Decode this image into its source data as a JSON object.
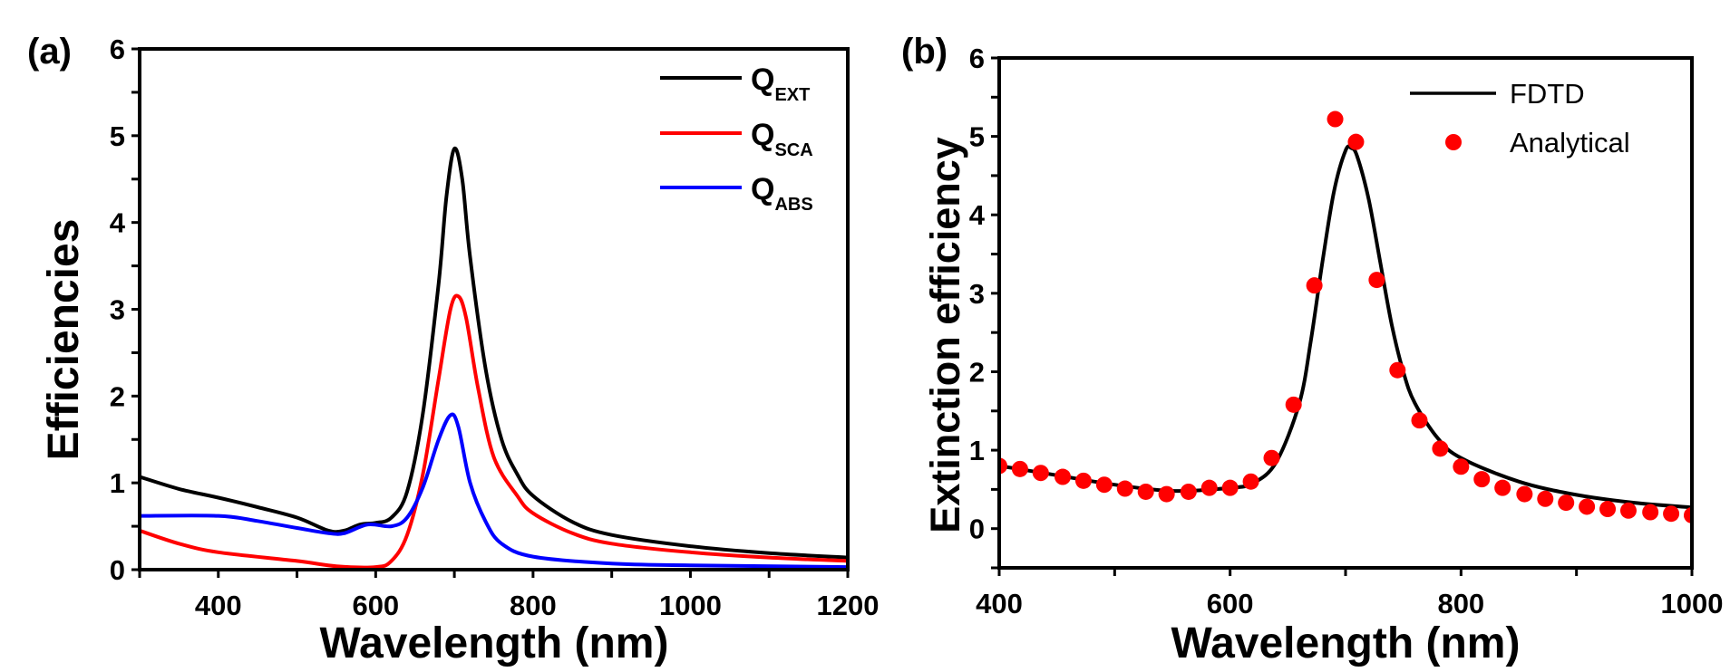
{
  "chart_data": [
    {
      "panel_label": "(a)",
      "type": "line",
      "xlabel": "Wavelength (nm)",
      "ylabel": "Efficiencies",
      "xlim": [
        300,
        1200
      ],
      "ylim": [
        0,
        6
      ],
      "xticks": [
        400,
        600,
        800,
        1000,
        1200
      ],
      "yticks": [
        0,
        1,
        2,
        3,
        4,
        5,
        6
      ],
      "grid": false,
      "legend_position": "top-right",
      "series": [
        {
          "name": "Q",
          "subscript": "EXT",
          "color": "#000000",
          "x": [
            300,
            350,
            400,
            450,
            500,
            540,
            560,
            580,
            600,
            620,
            640,
            660,
            680,
            690,
            700,
            710,
            720,
            740,
            760,
            780,
            800,
            850,
            900,
            1000,
            1100,
            1200
          ],
          "y": [
            1.07,
            0.93,
            0.83,
            0.72,
            0.6,
            0.45,
            0.45,
            0.52,
            0.54,
            0.6,
            0.9,
            1.8,
            3.3,
            4.3,
            4.85,
            4.5,
            3.6,
            2.3,
            1.5,
            1.1,
            0.85,
            0.55,
            0.4,
            0.27,
            0.19,
            0.14
          ]
        },
        {
          "name": "Q",
          "subscript": "SCA",
          "color": "#ff0000",
          "x": [
            300,
            350,
            400,
            500,
            550,
            600,
            620,
            640,
            660,
            680,
            695,
            705,
            715,
            730,
            750,
            780,
            800,
            850,
            900,
            1000,
            1100,
            1200
          ],
          "y": [
            0.45,
            0.3,
            0.2,
            0.1,
            0.04,
            0.03,
            0.1,
            0.4,
            1.1,
            2.2,
            3.0,
            3.15,
            2.9,
            2.1,
            1.3,
            0.85,
            0.65,
            0.42,
            0.3,
            0.2,
            0.14,
            0.1
          ]
        },
        {
          "name": "Q",
          "subscript": "ABS",
          "color": "#0000ff",
          "x": [
            300,
            400,
            450,
            500,
            540,
            560,
            590,
            620,
            640,
            660,
            680,
            695,
            705,
            720,
            740,
            760,
            800,
            900,
            1000,
            1200
          ],
          "y": [
            0.62,
            0.62,
            0.56,
            0.48,
            0.42,
            0.42,
            0.52,
            0.5,
            0.6,
            0.95,
            1.5,
            1.78,
            1.65,
            1.0,
            0.55,
            0.3,
            0.15,
            0.07,
            0.05,
            0.03
          ]
        }
      ]
    },
    {
      "panel_label": "(b)",
      "type": "line+scatter",
      "xlabel": "Wavelength (nm)",
      "ylabel": "Extinction efficiency",
      "xlim": [
        400,
        1000
      ],
      "ylim": [
        -0.5,
        6
      ],
      "xticks": [
        400,
        600,
        800,
        1000
      ],
      "yticks": [
        0,
        1,
        2,
        3,
        4,
        5,
        6
      ],
      "grid": false,
      "legend_position": "top-right",
      "series": [
        {
          "name": "FDTD",
          "kind": "line",
          "color": "#000000",
          "x": [
            400,
            450,
            500,
            550,
            600,
            620,
            640,
            660,
            670,
            680,
            690,
            700,
            705,
            710,
            720,
            730,
            740,
            750,
            760,
            780,
            800,
            850,
            900,
            950,
            1000
          ],
          "y": [
            0.8,
            0.68,
            0.56,
            0.48,
            0.52,
            0.58,
            0.85,
            1.6,
            2.4,
            3.4,
            4.3,
            4.82,
            4.85,
            4.75,
            4.2,
            3.4,
            2.6,
            2.0,
            1.6,
            1.15,
            0.9,
            0.6,
            0.43,
            0.33,
            0.27
          ]
        },
        {
          "name": "Analytical",
          "kind": "scatter",
          "color": "#ff0000",
          "x": [
            400,
            418,
            436,
            455,
            473,
            491,
            509,
            527,
            545,
            564,
            582,
            600,
            618,
            636,
            655,
            673,
            691,
            709,
            727,
            745,
            764,
            782,
            800,
            818,
            836,
            855,
            873,
            891,
            909,
            927,
            945,
            964,
            982,
            1000
          ],
          "y": [
            0.8,
            0.76,
            0.71,
            0.66,
            0.61,
            0.56,
            0.51,
            0.47,
            0.44,
            0.47,
            0.52,
            0.52,
            0.6,
            0.9,
            1.58,
            3.1,
            5.22,
            4.93,
            3.17,
            2.02,
            1.38,
            1.02,
            0.79,
            0.63,
            0.52,
            0.44,
            0.38,
            0.33,
            0.28,
            0.25,
            0.23,
            0.21,
            0.19,
            0.17
          ]
        }
      ]
    }
  ]
}
